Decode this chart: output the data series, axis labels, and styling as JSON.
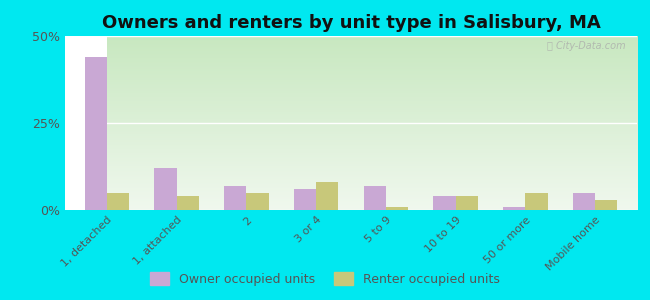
{
  "title": "Owners and renters by unit type in Salisbury, MA",
  "categories": [
    "1, detached",
    "1, attached",
    "2",
    "3 or 4",
    "5 to 9",
    "10 to 19",
    "50 or more",
    "Mobile home"
  ],
  "owner_values": [
    44,
    12,
    7,
    6,
    7,
    4,
    1,
    5
  ],
  "renter_values": [
    5,
    4,
    5,
    8,
    1,
    4,
    5,
    3
  ],
  "owner_color": "#c9a8d4",
  "renter_color": "#c8c87a",
  "ylim": [
    0,
    50
  ],
  "yticks": [
    0,
    25,
    50
  ],
  "ytick_labels": [
    "0%",
    "25%",
    "50%"
  ],
  "background_outer": "#00e8f0",
  "grad_top": "#c8e8c0",
  "grad_bottom": "#f0f8ee",
  "title_fontsize": 13,
  "legend_labels": [
    "Owner occupied units",
    "Renter occupied units"
  ],
  "watermark": "ⓘ City-Data.com",
  "bar_width": 0.32
}
